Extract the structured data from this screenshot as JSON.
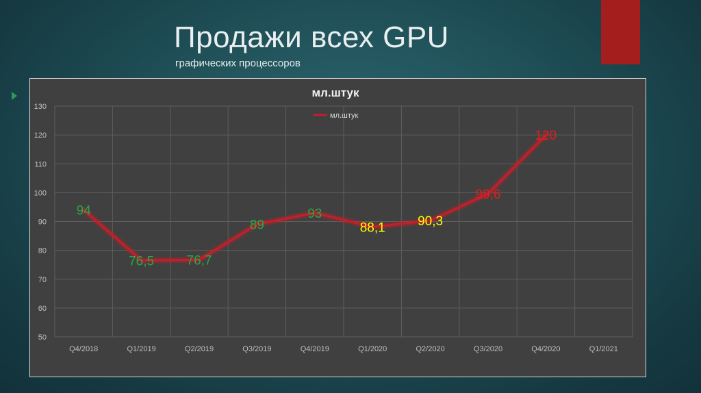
{
  "slide": {
    "title": "Продажи всех GPU",
    "subtitle": "графических процессоров"
  },
  "colors": {
    "line": "#c0202a",
    "label_green": "#25a94a",
    "label_yellow": "#ffff00",
    "label_red": "#e01f1f",
    "accent_red": "#a41e1e"
  },
  "chart_data": {
    "type": "line",
    "title": "мл.штук",
    "legend_position": "top",
    "grid": true,
    "ylim": [
      50,
      130
    ],
    "yticks": [
      50,
      60,
      70,
      80,
      90,
      100,
      110,
      120,
      130
    ],
    "categories": [
      "Q4/2018",
      "Q1/2019",
      "Q2/2019",
      "Q3/2019",
      "Q4/2019",
      "Q1/2020",
      "Q2/2020",
      "Q3/2020",
      "Q4/2020",
      "Q1/2021"
    ],
    "series": [
      {
        "name": "мл.штук",
        "color": "#c0202a",
        "values": [
          94,
          76.5,
          76.7,
          89,
          93,
          88.1,
          90.3,
          99.6,
          120,
          null
        ],
        "labels": [
          "94",
          "76,5",
          "76,7",
          "89",
          "93",
          "88,1",
          "90,3",
          "99,6",
          "120",
          null
        ],
        "label_colors": [
          "#25a94a",
          "#25a94a",
          "#25a94a",
          "#25a94a",
          "#25a94a",
          "#ffff00",
          "#ffff00",
          "#e01f1f",
          "#e01f1f",
          null
        ]
      }
    ]
  }
}
